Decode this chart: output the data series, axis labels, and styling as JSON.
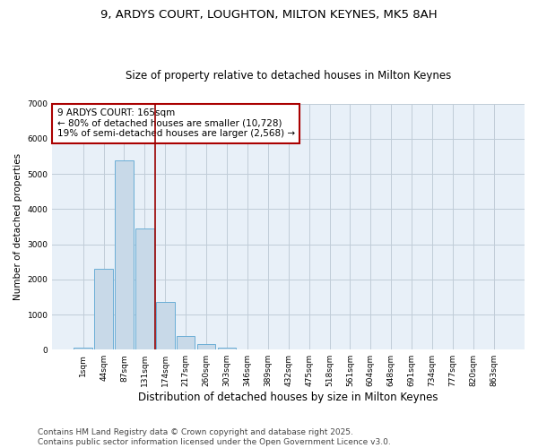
{
  "title": "9, ARDYS COURT, LOUGHTON, MILTON KEYNES, MK5 8AH",
  "subtitle": "Size of property relative to detached houses in Milton Keynes",
  "xlabel": "Distribution of detached houses by size in Milton Keynes",
  "ylabel": "Number of detached properties",
  "categories": [
    "1sqm",
    "44sqm",
    "87sqm",
    "131sqm",
    "174sqm",
    "217sqm",
    "260sqm",
    "303sqm",
    "346sqm",
    "389sqm",
    "432sqm",
    "475sqm",
    "518sqm",
    "561sqm",
    "604sqm",
    "648sqm",
    "691sqm",
    "734sqm",
    "777sqm",
    "820sqm",
    "863sqm"
  ],
  "values": [
    50,
    2300,
    5400,
    3450,
    1350,
    400,
    150,
    50,
    10,
    0,
    0,
    0,
    0,
    0,
    0,
    0,
    0,
    0,
    0,
    0,
    0
  ],
  "bar_color": "#c8d9e8",
  "bar_edge_color": "#6baed6",
  "vline_x": 3.5,
  "vline_color": "#990000",
  "annotation_text": "9 ARDYS COURT: 165sqm\n← 80% of detached houses are smaller (10,728)\n19% of semi-detached houses are larger (2,568) →",
  "annotation_box_color": "#aa0000",
  "ylim": [
    0,
    7000
  ],
  "yticks": [
    0,
    1000,
    2000,
    3000,
    4000,
    5000,
    6000,
    7000
  ],
  "grid_color": "#c0ccd8",
  "bg_color": "#e8f0f8",
  "footer": "Contains HM Land Registry data © Crown copyright and database right 2025.\nContains public sector information licensed under the Open Government Licence v3.0.",
  "title_fontsize": 9.5,
  "subtitle_fontsize": 8.5,
  "xlabel_fontsize": 8.5,
  "ylabel_fontsize": 7.5,
  "tick_fontsize": 6.5,
  "footer_fontsize": 6.5,
  "annot_fontsize": 7.5
}
